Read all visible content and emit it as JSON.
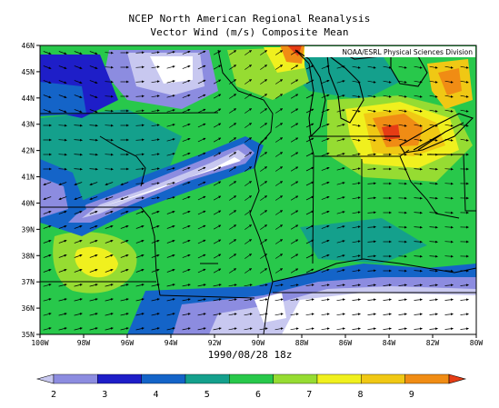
{
  "header": {
    "title_line1": "NCEP North American Regional Reanalysis",
    "title_line2": "Vector Wind (m/s) Composite Mean"
  },
  "map": {
    "credit": "NOAA/ESRL Physical Sciences Division",
    "date_label": "1990/08/28 18z",
    "lat_labels": [
      "46N",
      "45N",
      "44N",
      "43N",
      "42N",
      "41N",
      "40N",
      "39N",
      "38N",
      "37N",
      "36N",
      "35N"
    ],
    "lon_labels": [
      "100W",
      "98W",
      "96W",
      "94W",
      "92W",
      "90W",
      "88W",
      "86W",
      "84W",
      "82W",
      "80W"
    ]
  },
  "colorbar": {
    "tick_labels": [
      "2",
      "3",
      "4",
      "5",
      "6",
      "7",
      "8",
      "9"
    ],
    "colors": [
      "#c8c8f0",
      "#8c8ce0",
      "#1e1ec8",
      "#1464c8",
      "#14a08c",
      "#28c84b",
      "#96dc32",
      "#f0f01e",
      "#f0c814",
      "#f08c14",
      "#e63c14"
    ]
  },
  "chart_data": {
    "type": "heatmap",
    "title": "NCEP North American Regional Reanalysis",
    "subtitle": "Vector Wind (m/s) Composite Mean",
    "xlabel": "",
    "ylabel": "",
    "x_range": [
      "100W",
      "80W"
    ],
    "y_range": [
      "35N",
      "46N"
    ],
    "color_levels": [
      2,
      3,
      4,
      5,
      6,
      7,
      8,
      9
    ],
    "date": "1990/08/28 18z"
  }
}
